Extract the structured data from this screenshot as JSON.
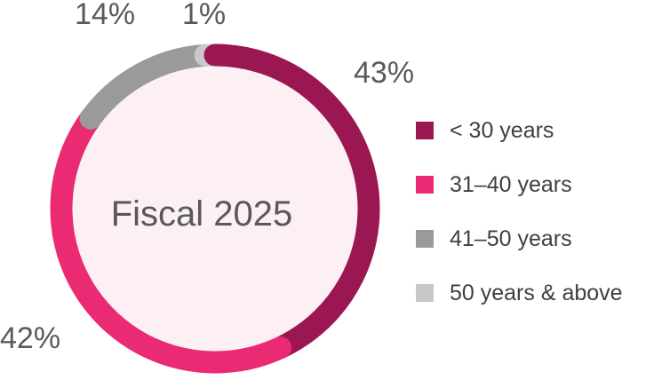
{
  "chart_data": {
    "type": "pie",
    "variant": "donut",
    "center_text": "Fiscal 2025",
    "categories": [
      "< 30 years",
      "31–40 years",
      "41–50 years",
      "50 years & above"
    ],
    "values": [
      43,
      42,
      14,
      1
    ],
    "labels": [
      "43%",
      "42%",
      "14%",
      "1%"
    ],
    "colors": [
      "#9b1753",
      "#ea2a72",
      "#9a9a9a",
      "#c8c8c8"
    ],
    "center_fill": "#fdf0f5",
    "legend_placement": "right"
  }
}
